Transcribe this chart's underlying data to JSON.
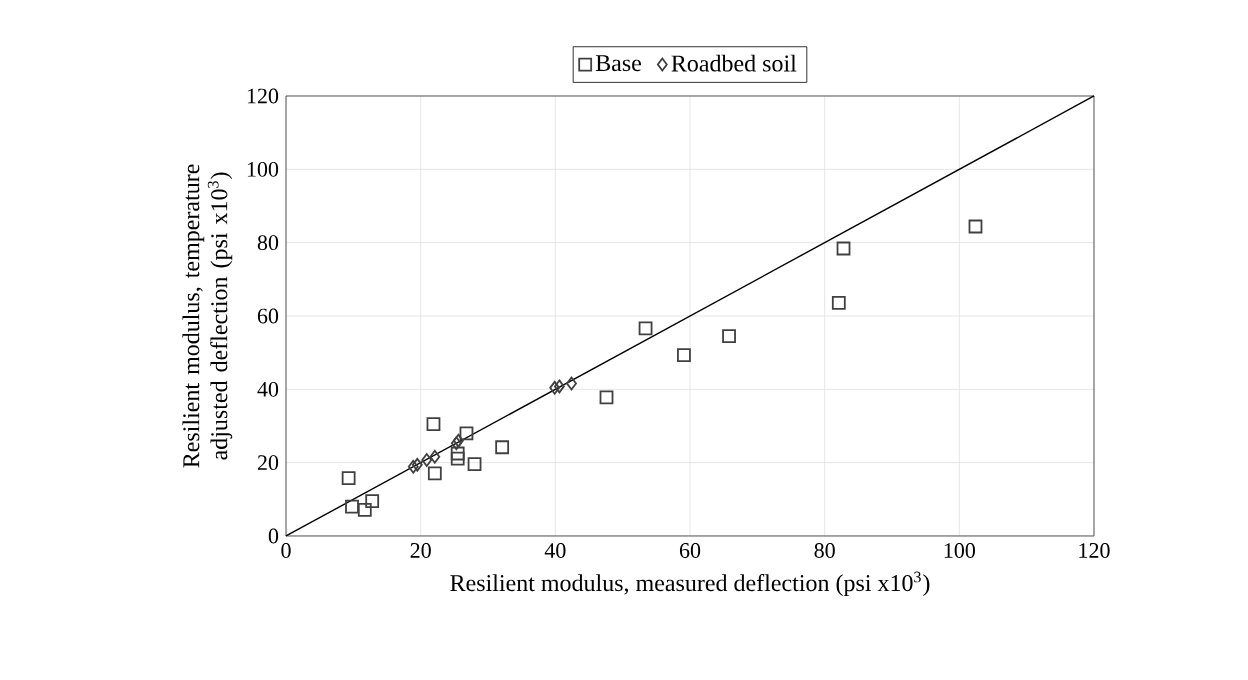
{
  "chart_data": {
    "type": "scatter",
    "xlabel": "Resilient modulus, measured deflection (psi x10$^{3}$)",
    "ylabel": "Resilient modulus, temperature adjusted deflection (psi x10$^{3}$)",
    "xlim": [
      0,
      120
    ],
    "ylim": [
      0,
      120
    ],
    "xticks": [
      0,
      20,
      40,
      60,
      80,
      100,
      120
    ],
    "yticks": [
      0,
      20,
      40,
      60,
      80,
      100,
      120
    ],
    "grid": true,
    "legend": "top",
    "series": [
      {
        "name": "Base",
        "color": "#404040",
        "marker": "square",
        "x": [
          9.3,
          9.8,
          11.7,
          12.8,
          21.9,
          22.1,
          26.8,
          25.5,
          25.5,
          28.0,
          32.1,
          47.6,
          53.4,
          59.1,
          65.8,
          82.1,
          82.8,
          102.4
        ],
        "values": [
          15.8,
          8.0,
          7.1,
          9.5,
          30.5,
          17.1,
          28.0,
          21.1,
          22.5,
          19.6,
          24.2,
          37.8,
          56.6,
          49.3,
          54.5,
          63.6,
          78.4,
          84.4
        ]
      },
      {
        "name": "Roadbed soil",
        "color": "#404040",
        "marker": "diamond",
        "x": [
          18.9,
          19.5,
          20.9,
          22.1,
          25.3,
          25.6,
          39.9,
          40.6,
          42.4
        ],
        "values": [
          18.9,
          19.4,
          20.7,
          21.6,
          25.3,
          26.0,
          40.4,
          40.8,
          41.6
        ]
      },
      {
        "type": "line",
        "color": "#000000",
        "marker": "none",
        "x": [
          0,
          120
        ],
        "values": [
          0,
          120
        ]
      }
    ]
  }
}
